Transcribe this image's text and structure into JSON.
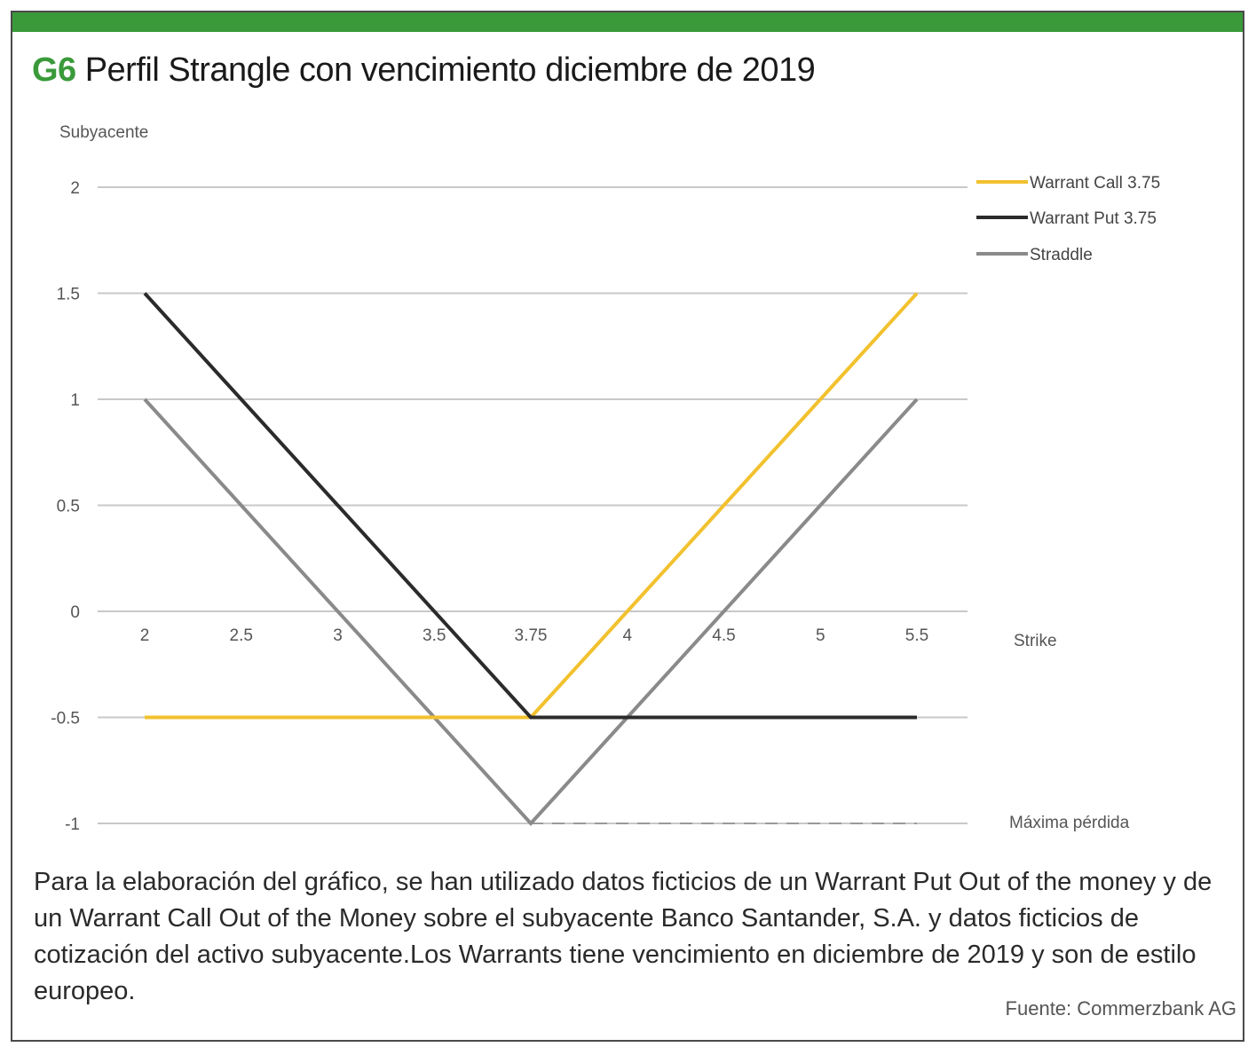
{
  "header": {
    "code": "G6",
    "title": "Perfil Strangle con vencimiento diciembre de 2019",
    "accent_color": "#3a9a3a"
  },
  "chart_data": {
    "type": "line",
    "ylabel": "Subyacente",
    "xlabel": "Strike",
    "min_label": "Máxima pérdida",
    "x_ticks": [
      "2",
      "2.5",
      "3",
      "3.5",
      "3.75",
      "4",
      "4.5",
      "5",
      "5.5"
    ],
    "y_ticks": [
      2,
      1.5,
      1,
      0.5,
      0,
      -0.5,
      -1
    ],
    "y_tick_labels": [
      "2",
      "1.5",
      "1",
      "0.5",
      "0",
      "-0.5",
      "-1"
    ],
    "ylim": [
      -1,
      2
    ],
    "grid": true,
    "legend_position": "top-right",
    "series": [
      {
        "name": "Warrant Call 3.75",
        "color": "#f2c12e",
        "values": [
          -0.5,
          -0.5,
          -0.5,
          -0.5,
          -0.5,
          0,
          0.5,
          1,
          1.5
        ]
      },
      {
        "name": "Warrant Put 3.75",
        "color": "#2b2b2b",
        "values": [
          1.5,
          1,
          0.5,
          0,
          -0.5,
          -0.5,
          -0.5,
          -0.5,
          -0.5
        ]
      },
      {
        "name": "Straddle",
        "color": "#8a8a8a",
        "values": [
          1,
          0.5,
          0,
          -0.5,
          -1,
          -0.5,
          0,
          0.5,
          1
        ]
      }
    ],
    "min_loss_value": -1
  },
  "caption": "Para la elaboración del gráfico, se han utilizado datos ficticios de un Warrant Put Out of the money y de un Warrant Call Out of the Money sobre el subyacente Banco Santander, S.A. y datos ficticios de cotización del activo subyacente.Los Warrants tiene vencimiento en diciembre de 2019 y son de estilo europeo.",
  "source": "Fuente:  Commerzbank AG"
}
